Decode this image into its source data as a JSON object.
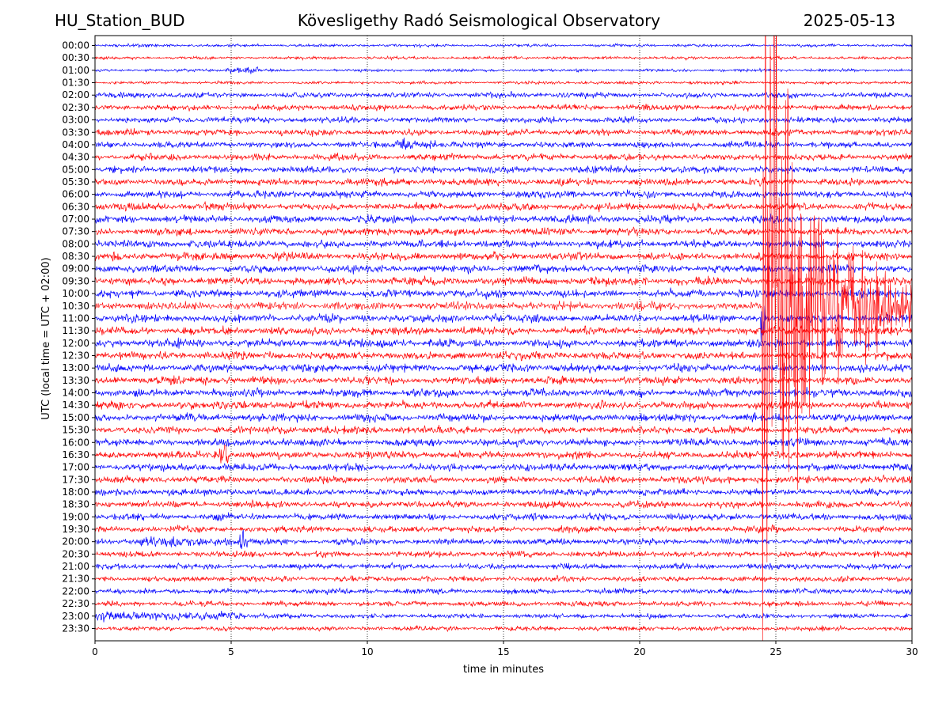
{
  "header": {
    "station": "HU_Station_BUD",
    "observatory": "Kövesligethy Radó Seismological Observatory",
    "date": "2025-05-13"
  },
  "chart_data": {
    "type": "line",
    "subtype": "helicorder",
    "xlabel": "time in minutes",
    "ylabel": "UTC (local time = UTC + 02:00)",
    "xlim": [
      0,
      30
    ],
    "xticks": [
      0,
      5,
      10,
      15,
      20,
      25,
      30
    ],
    "grid": "vertical dotted at x ticks",
    "colors": {
      "even_rows": "#0000ff",
      "odd_rows": "#ff0000"
    },
    "rows": [
      "00:00",
      "00:30",
      "01:00",
      "01:30",
      "02:00",
      "02:30",
      "03:00",
      "03:30",
      "04:00",
      "04:30",
      "05:00",
      "05:30",
      "06:00",
      "06:30",
      "07:00",
      "07:30",
      "08:00",
      "08:30",
      "09:00",
      "09:30",
      "10:00",
      "10:30",
      "11:00",
      "11:30",
      "12:00",
      "12:30",
      "13:00",
      "13:30",
      "14:00",
      "14:30",
      "15:00",
      "15:30",
      "16:00",
      "16:30",
      "17:00",
      "17:30",
      "18:00",
      "18:30",
      "19:00",
      "19:30",
      "20:00",
      "20:30",
      "21:00",
      "21:30",
      "22:00",
      "22:30",
      "23:00",
      "23:30"
    ],
    "events": [
      {
        "row": "10:30",
        "minute": 24.5,
        "note": "large earthquake onset, amplitude spans many rows"
      },
      {
        "row": "16:30",
        "minute": 4.7,
        "note": "spike"
      },
      {
        "row": "20:00",
        "minute": 5.4,
        "note": "spike"
      }
    ]
  }
}
